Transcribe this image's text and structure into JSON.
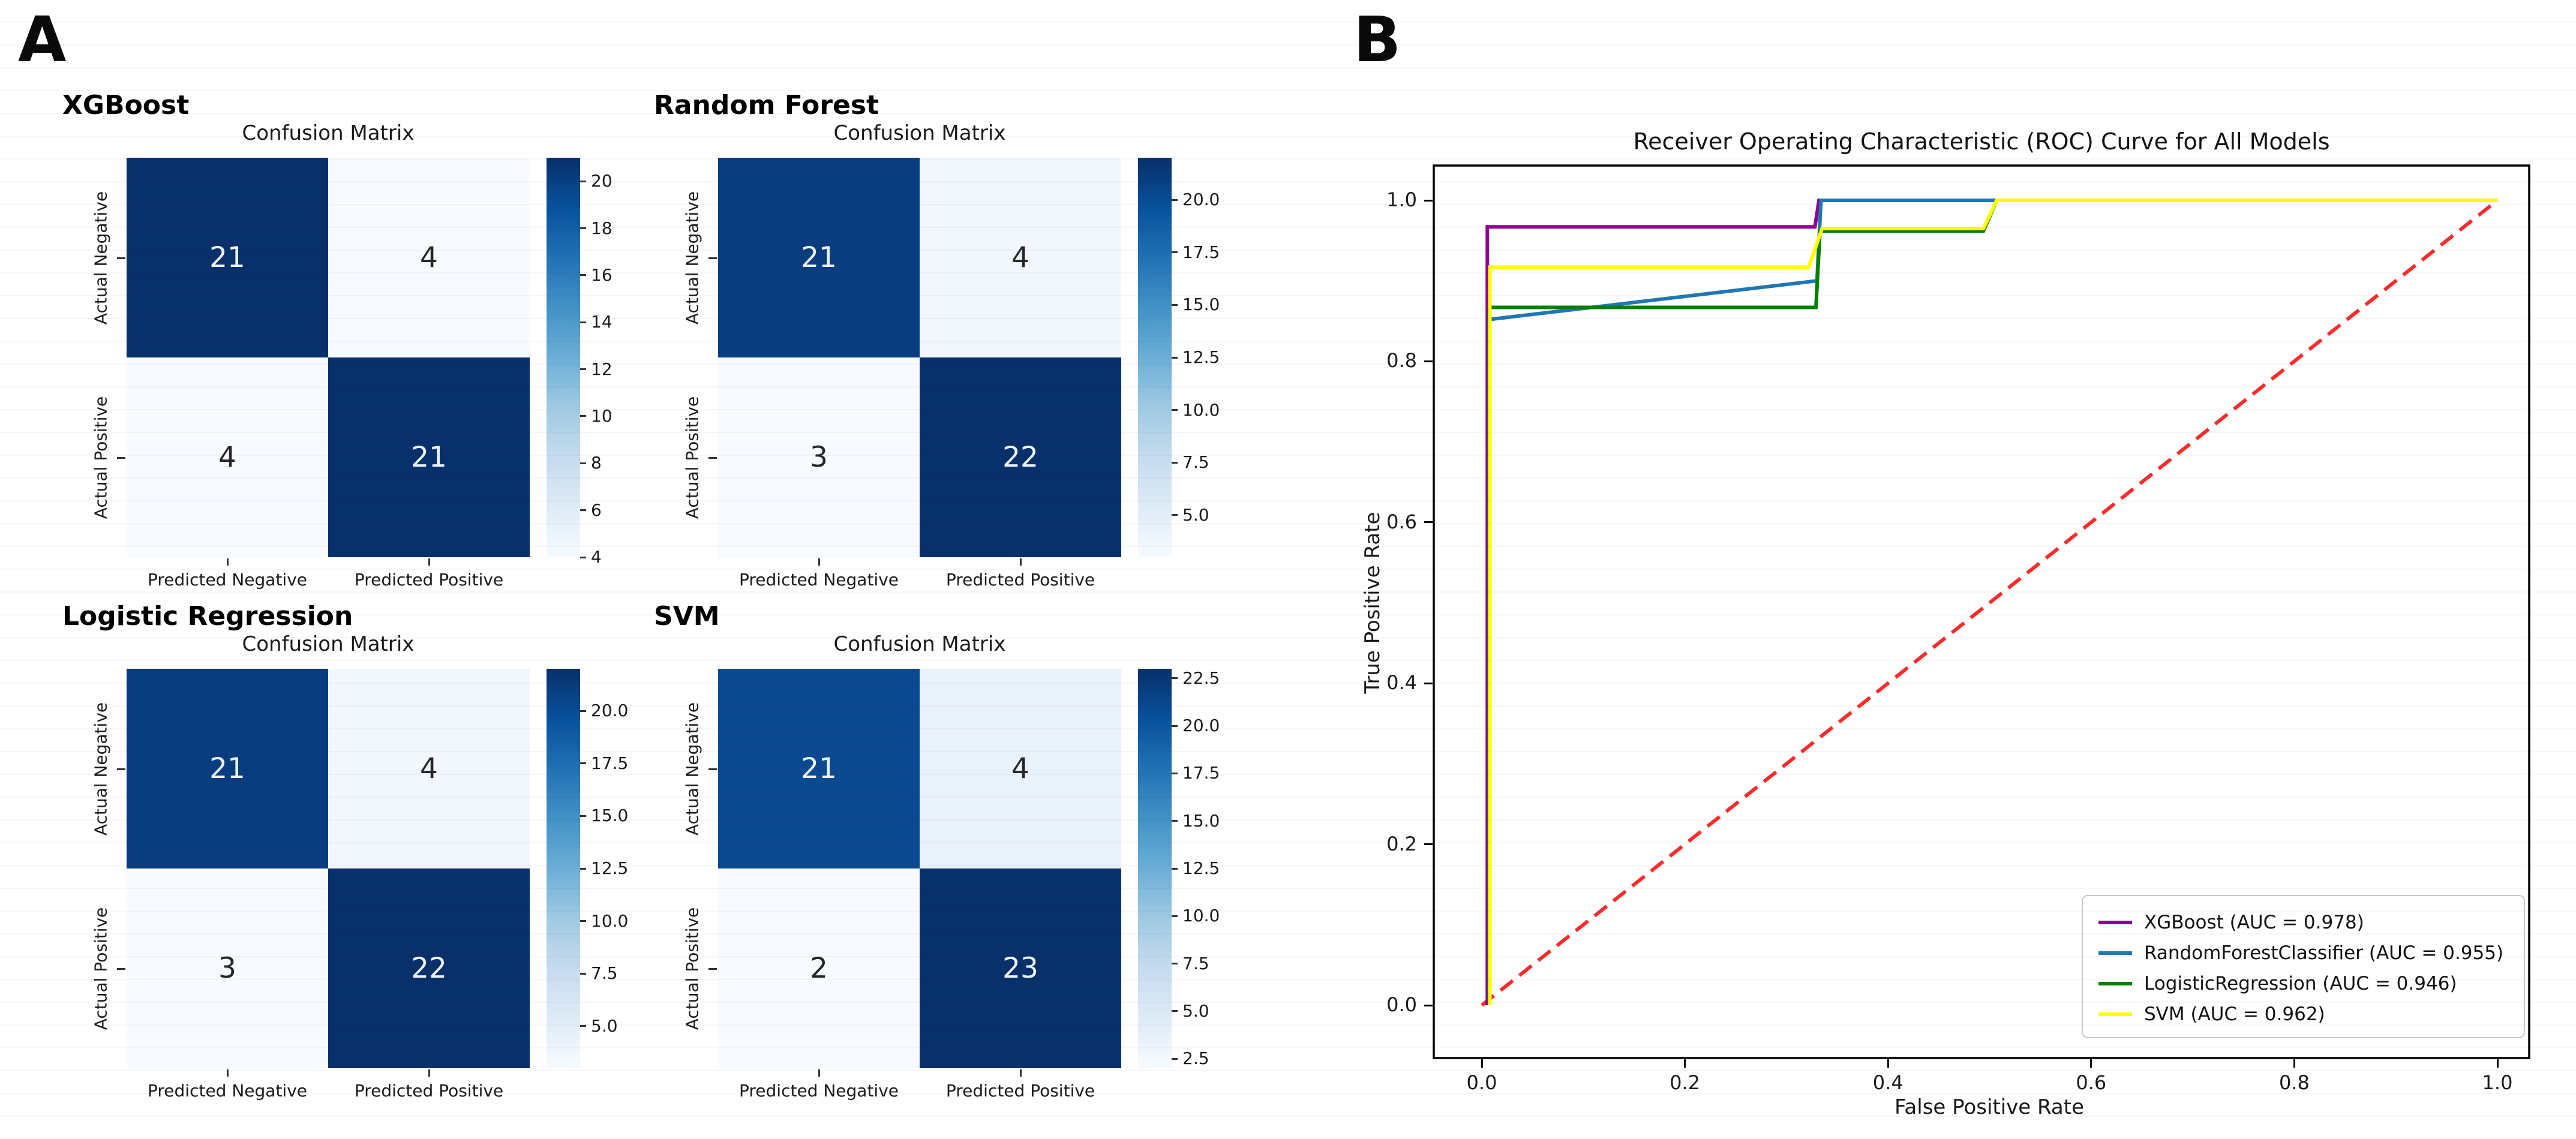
{
  "panels": {
    "a_label": "A",
    "b_label": "B"
  },
  "chart_data": [
    {
      "type": "heatmap",
      "model": "XGBoost",
      "title": "Confusion Matrix",
      "row_labels": [
        "Actual Negative",
        "Actual Positive"
      ],
      "col_labels": [
        "Predicted Negative",
        "Predicted Positive"
      ],
      "values": [
        [
          21,
          4
        ],
        [
          4,
          21
        ]
      ],
      "vmin": 4,
      "vmax": 21,
      "colorbar_ticks": [
        "4",
        "6",
        "8",
        "10",
        "12",
        "14",
        "16",
        "18",
        "20"
      ],
      "colormap": "Blues",
      "cell_colors": [
        [
          "#08306b",
          "#f7fbff"
        ],
        [
          "#f7fbff",
          "#08306b"
        ]
      ],
      "cell_text_colors": [
        [
          "#edf2fa",
          "#262626"
        ],
        [
          "#262626",
          "#edf2fa"
        ]
      ]
    },
    {
      "type": "heatmap",
      "model": "Random Forest",
      "title": "Confusion Matrix",
      "row_labels": [
        "Actual Negative",
        "Actual Positive"
      ],
      "col_labels": [
        "Predicted Negative",
        "Predicted Positive"
      ],
      "values": [
        [
          21,
          4
        ],
        [
          3,
          22
        ]
      ],
      "vmin": 3,
      "vmax": 22,
      "colorbar_ticks": [
        "5.0",
        "7.5",
        "10.0",
        "12.5",
        "15.0",
        "17.5",
        "20.0"
      ],
      "colormap": "Blues",
      "cell_colors": [
        [
          "#083d7f",
          "#f2f7fd"
        ],
        [
          "#f7fbff",
          "#08306b"
        ]
      ],
      "cell_text_colors": [
        [
          "#edf2fa",
          "#262626"
        ],
        [
          "#262626",
          "#edf2fa"
        ]
      ]
    },
    {
      "type": "heatmap",
      "model": "Logistic Regression",
      "title": "Confusion Matrix",
      "row_labels": [
        "Actual Negative",
        "Actual Positive"
      ],
      "col_labels": [
        "Predicted Negative",
        "Predicted Positive"
      ],
      "values": [
        [
          21,
          4
        ],
        [
          3,
          22
        ]
      ],
      "vmin": 3,
      "vmax": 22,
      "colorbar_ticks": [
        "5.0",
        "7.5",
        "10.0",
        "12.5",
        "15.0",
        "17.5",
        "20.0"
      ],
      "colormap": "Blues",
      "cell_colors": [
        [
          "#083d7f",
          "#f2f7fd"
        ],
        [
          "#f7fbff",
          "#08306b"
        ]
      ],
      "cell_text_colors": [
        [
          "#edf2fa",
          "#262626"
        ],
        [
          "#262626",
          "#edf2fa"
        ]
      ]
    },
    {
      "type": "heatmap",
      "model": "SVM",
      "title": "Confusion Matrix",
      "row_labels": [
        "Actual Negative",
        "Actual Positive"
      ],
      "col_labels": [
        "Predicted Negative",
        "Predicted Positive"
      ],
      "values": [
        [
          21,
          4
        ],
        [
          2,
          23
        ]
      ],
      "vmin": 2,
      "vmax": 23,
      "colorbar_ticks": [
        "2.5",
        "5.0",
        "7.5",
        "10.0",
        "12.5",
        "15.0",
        "17.5",
        "20.0",
        "22.5"
      ],
      "colormap": "Blues",
      "cell_colors": [
        [
          "#0b4a90",
          "#e9f1fb"
        ],
        [
          "#f7fbff",
          "#08306b"
        ]
      ],
      "cell_text_colors": [
        [
          "#edf2fa",
          "#262626"
        ],
        [
          "#262626",
          "#edf2fa"
        ]
      ]
    },
    {
      "type": "line",
      "title": "Receiver Operating Characteristic (ROC) Curve for All Models",
      "xlabel": "False Positive Rate",
      "ylabel": "True Positive Rate",
      "xticks": [
        "0.0",
        "0.2",
        "0.4",
        "0.6",
        "0.8",
        "1.0"
      ],
      "yticks": [
        "0.0",
        "0.2",
        "0.4",
        "0.6",
        "0.8",
        "1.0"
      ],
      "xlim": [
        0,
        1
      ],
      "ylim": [
        0,
        1
      ],
      "legend_position": "lower right",
      "series": [
        {
          "name": "XGBoost (AUC = 0.978)",
          "color": "#8f008f",
          "points": [
            [
              0.0055,
              0
            ],
            [
              0.0055,
              0.967
            ],
            [
              0.328,
              0.967
            ],
            [
              0.332,
              1.0
            ],
            [
              1.0,
              1.0
            ]
          ]
        },
        {
          "name": "RandomForestClassifier (AUC = 0.955)",
          "color": "#1f77b4",
          "points": [
            [
              0.0075,
              0
            ],
            [
              0.0075,
              0.852
            ],
            [
              0.33,
              0.9
            ],
            [
              0.334,
              1.0
            ],
            [
              1.0,
              1.0
            ]
          ]
        },
        {
          "name": "LogisticRegression (AUC = 0.946)",
          "color": "#008000",
          "points": [
            [
              0.0075,
              0
            ],
            [
              0.0075,
              0.867
            ],
            [
              0.329,
              0.867
            ],
            [
              0.333,
              0.962
            ],
            [
              0.494,
              0.962
            ],
            [
              0.507,
              1.0
            ],
            [
              1.0,
              1.0
            ]
          ]
        },
        {
          "name": "SVM (AUC = 0.962)",
          "color": "#ffff00",
          "points": [
            [
              0.008,
              0
            ],
            [
              0.008,
              0.917
            ],
            [
              0.322,
              0.917
            ],
            [
              0.335,
              0.965
            ],
            [
              0.494,
              0.965
            ],
            [
              0.507,
              1.0
            ],
            [
              1.0,
              1.0
            ]
          ]
        }
      ],
      "reference_line": {
        "color": "#fb2c2c",
        "dash": [
          26,
          14
        ],
        "points": [
          [
            0,
            0
          ],
          [
            1,
            1
          ]
        ]
      }
    }
  ]
}
